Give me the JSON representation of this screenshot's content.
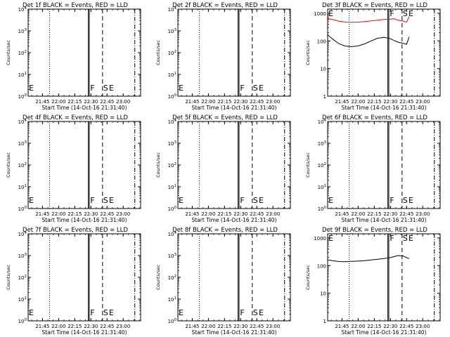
{
  "chart_data": [
    {
      "type": "line",
      "title": "Det 1f BLACK = Events, RED = LLD",
      "xlabel": "Start Time (14-Oct-16 21:31:40)",
      "ylabel": "Counts/sec",
      "x_ticks": [
        "21:45",
        "22:00",
        "22:15",
        "22:30",
        "22:45",
        "23:00"
      ],
      "y_scale": "log",
      "y_ticks": [
        "10^0",
        "10^1",
        "10^2",
        "10^3",
        "10^4"
      ],
      "markers": [
        "E",
        "F",
        "S",
        "E"
      ],
      "series": []
    },
    {
      "type": "line",
      "title": "Det 2f BLACK = Events, RED = LLD",
      "xlabel": "Start Time (14-Oct-16 21:31:40)",
      "ylabel": "Counts/sec",
      "x_ticks": [
        "21:45",
        "22:00",
        "22:15",
        "22:30",
        "22:45",
        "23:00"
      ],
      "y_scale": "log",
      "y_ticks": [
        "10^0",
        "10^1",
        "10^2",
        "10^3",
        "10^4"
      ],
      "markers": [
        "E",
        "F",
        "S",
        "E"
      ],
      "series": []
    },
    {
      "type": "line",
      "title": "Det 3f BLACK = Events, RED = LLD",
      "xlabel": "Start Time (14-Oct-16 21:31:40)",
      "ylabel": "Counts/sec",
      "x_ticks": [
        "21:45",
        "22:00",
        "22:15",
        "22:30",
        "22:45",
        "23:00"
      ],
      "y_scale": "log",
      "y_ticks": [
        "1",
        "10",
        "100",
        "1000"
      ],
      "markers": [
        "E",
        "F",
        "S",
        "E"
      ],
      "series": [
        {
          "color": "#ff0000",
          "x": [
            21.53,
            21.6,
            21.7,
            21.8,
            21.9,
            22.0,
            22.1,
            22.2,
            22.3,
            22.4,
            22.5,
            22.55,
            22.62,
            22.7,
            22.75,
            22.79
          ],
          "y": [
            640,
            600,
            520,
            480,
            470,
            480,
            500,
            530,
            560,
            600,
            610,
            640,
            560,
            520,
            470,
            760
          ]
        },
        {
          "color": "#000000",
          "x": [
            21.53,
            21.6,
            21.7,
            21.8,
            21.9,
            22.0,
            22.1,
            22.2,
            22.3,
            22.4,
            22.5,
            22.55,
            22.62,
            22.7,
            22.75,
            22.79
          ],
          "y": [
            165,
            120,
            80,
            65,
            62,
            66,
            78,
            100,
            125,
            135,
            120,
            105,
            90,
            82,
            75,
            140
          ]
        }
      ]
    },
    {
      "type": "line",
      "title": "Det 4f BLACK = Events, RED = LLD",
      "xlabel": "Start Time (14-Oct-16 21:31:40)",
      "ylabel": "Counts/sec",
      "x_ticks": [
        "21:45",
        "22:00",
        "22:15",
        "22:30",
        "22:45",
        "23:00"
      ],
      "y_scale": "log",
      "y_ticks": [
        "10^0",
        "10^1",
        "10^2",
        "10^3",
        "10^4"
      ],
      "markers": [
        "E",
        "F",
        "S",
        "E"
      ],
      "series": []
    },
    {
      "type": "line",
      "title": "Det 5f BLACK = Events, RED = LLD",
      "xlabel": "Start Time (14-Oct-16 21:31:40)",
      "ylabel": "Counts/sec",
      "x_ticks": [
        "21:45",
        "22:00",
        "22:15",
        "22:30",
        "22:45",
        "23:00"
      ],
      "y_scale": "log",
      "y_ticks": [
        "10^0",
        "10^1",
        "10^2",
        "10^3",
        "10^4"
      ],
      "markers": [
        "E",
        "F",
        "S",
        "E"
      ],
      "series": []
    },
    {
      "type": "line",
      "title": "Det 6f BLACK = Events, RED = LLD",
      "xlabel": "Start Time (14-Oct-16 21:31:40)",
      "ylabel": "Counts/sec",
      "x_ticks": [
        "21:45",
        "22:00",
        "22:15",
        "22:30",
        "22:45",
        "23:00"
      ],
      "y_scale": "log",
      "y_ticks": [
        "10^0",
        "10^1",
        "10^2",
        "10^3",
        "10^4"
      ],
      "markers": [
        "E",
        "F",
        "S",
        "E"
      ],
      "series": []
    },
    {
      "type": "line",
      "title": "Det 7f BLACK = Events, RED = LLD",
      "xlabel": "Start Time (14-Oct-16 21:31:40)",
      "ylabel": "Counts/sec",
      "x_ticks": [
        "21:45",
        "22:00",
        "22:15",
        "22:30",
        "22:45",
        "23:00"
      ],
      "y_scale": "log",
      "y_ticks": [
        "10^0",
        "10^1",
        "10^2",
        "10^3",
        "10^4"
      ],
      "markers": [
        "E",
        "F",
        "S",
        "E"
      ],
      "series": []
    },
    {
      "type": "line",
      "title": "Det 8f BLACK = Events, RED = LLD",
      "xlabel": "Start Time (14-Oct-16 21:31:40)",
      "ylabel": "Counts/sec",
      "x_ticks": [
        "21:45",
        "22:00",
        "22:15",
        "22:30",
        "22:45",
        "23:00"
      ],
      "y_scale": "log",
      "y_ticks": [
        "10^0",
        "10^1",
        "10^2",
        "10^3",
        "10^4"
      ],
      "markers": [
        "E",
        "F",
        "S",
        "E"
      ],
      "series": []
    },
    {
      "type": "line",
      "title": "Det 9f BLACK = Events, RED = LLD",
      "xlabel": "Start Time (14-Oct-16 21:31:40)",
      "ylabel": "Counts/sec",
      "x_ticks": [
        "21:45",
        "22:00",
        "22:15",
        "22:30",
        "22:45",
        "23:00"
      ],
      "y_scale": "log",
      "y_ticks": [
        "1",
        "10",
        "100",
        "1000"
      ],
      "markers": [
        "E",
        "F",
        "S",
        "E"
      ],
      "series": [
        {
          "color": "#000000",
          "x": [
            21.53,
            21.6,
            21.7,
            21.8,
            21.9,
            22.0,
            22.1,
            22.2,
            22.3,
            22.4,
            22.5,
            22.55,
            22.62,
            22.7,
            22.75,
            22.79
          ],
          "y": [
            160,
            150,
            140,
            138,
            142,
            145,
            150,
            160,
            170,
            180,
            195,
            210,
            230,
            220,
            195,
            180
          ]
        }
      ]
    }
  ]
}
